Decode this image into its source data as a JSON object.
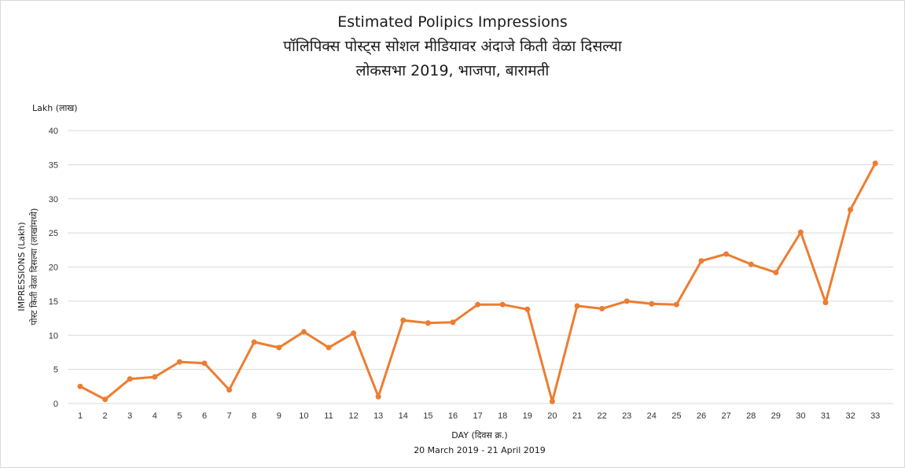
{
  "chart_data": {
    "type": "line",
    "title": "Estimated Polipics Impressions",
    "title_line2": "पॉलिपिक्स पोस्ट्स सोशल मीडियावर अंदाजे किती वेळा दिसल्या",
    "title_line3": "लोकसभा 2019, भाजपा, बारामती",
    "unit_label": "Lakh (लाख)",
    "ylabel_line1": "IMPRESSIONS (Lakh)",
    "ylabel_line2": "पोस्ट किती वेळा दिसल्या (लाखांमध्ये)",
    "xlabel": "DAY (दिवस  क्र.)",
    "xlabel_sub": "20 March 2019 - 21 April 2019",
    "ylim": [
      0,
      40
    ],
    "yticks": [
      0,
      5,
      10,
      15,
      20,
      25,
      30,
      35,
      40
    ],
    "grid": true,
    "categories": [
      "1",
      "2",
      "3",
      "4",
      "5",
      "6",
      "7",
      "8",
      "9",
      "10",
      "11",
      "12",
      "13",
      "14",
      "15",
      "16",
      "17",
      "18",
      "19",
      "20",
      "21",
      "22",
      "23",
      "24",
      "25",
      "26",
      "27",
      "28",
      "29",
      "30",
      "31",
      "32",
      "33"
    ],
    "values": [
      2.5,
      0.6,
      3.6,
      3.9,
      6.1,
      5.9,
      2.0,
      9.0,
      8.2,
      10.5,
      8.2,
      10.3,
      1.0,
      12.2,
      11.8,
      11.9,
      14.5,
      14.5,
      13.8,
      0.3,
      14.3,
      13.9,
      15.0,
      14.6,
      14.5,
      20.9,
      21.9,
      20.4,
      19.2,
      25.1,
      14.8,
      28.4,
      35.2
    ],
    "series_color": "#ED7D31"
  }
}
